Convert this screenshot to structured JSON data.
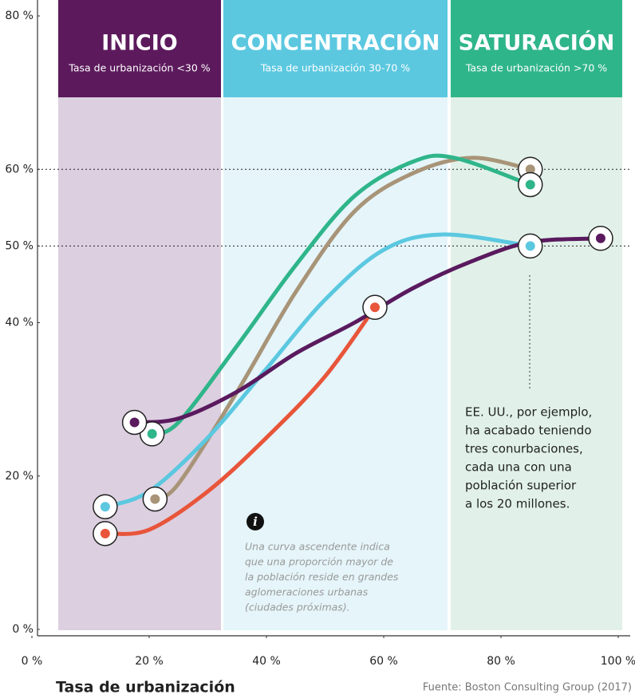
{
  "chart_data": {
    "type": "line",
    "bands": [
      {
        "title": "INICIO",
        "subtitle": "Tasa de urbanización <30 %"
      },
      {
        "title": "CONCENTRACIÓN",
        "subtitle": "Tasa de urbanización 30-70 %"
      },
      {
        "title": "SATURACIÓN",
        "subtitle": "Tasa de urbanización >70 %"
      }
    ],
    "xlabel": "Tasa de urbanización",
    "source": "Fuente: Boston Consulting Group (2017)",
    "annotation": [
      "EE. UU., por ejemplo,",
      "ha acabado teniendo",
      "tres conurbaciones,",
      "cada una con una",
      "población superior",
      "a los 20 millones."
    ],
    "note": [
      "Una curva ascendente indica",
      "que una proporción mayor de",
      "la población reside en grandes",
      "aglomeraciones urbanas",
      "(ciudades próximas)."
    ],
    "xlim": [
      0,
      100
    ],
    "xticks": [
      {
        "value": 0,
        "label": "0 %"
      },
      {
        "value": 20,
        "label": "20 %"
      },
      {
        "value": 40,
        "label": "40 %"
      },
      {
        "value": 60,
        "label": "60 %"
      },
      {
        "value": 80,
        "label": "80 %"
      },
      {
        "value": 100,
        "label": "100 %"
      }
    ],
    "ylim": [
      0,
      80
    ],
    "yticks": [
      {
        "value": 0,
        "label": "0 %"
      },
      {
        "value": 20,
        "label": "20 %"
      },
      {
        "value": 40,
        "label": "40 %"
      },
      {
        "value": 50,
        "label": "50 %"
      },
      {
        "value": 60,
        "label": "60 %"
      },
      {
        "value": 80,
        "label": "80 %"
      }
    ],
    "reference_lines": [
      60,
      50
    ],
    "series": [
      {
        "color": "#a89478",
        "x": [
          21,
          25,
          35,
          45,
          55,
          65,
          75,
          85
        ],
        "values": [
          17,
          19,
          31,
          44,
          54.5,
          59.5,
          61.5,
          60
        ]
      },
      {
        "color": "#2fb58a",
        "x": [
          20.5,
          25,
          35,
          45,
          55,
          65,
          72,
          85
        ],
        "values": [
          25.5,
          27,
          37,
          47.5,
          56.5,
          61,
          61.5,
          58
        ]
      },
      {
        "color": "#5bc8e0",
        "x": [
          12.5,
          20,
          30,
          40,
          50,
          60,
          70,
          85
        ],
        "values": [
          16,
          18,
          25,
          34,
          43,
          49.5,
          51.5,
          50
        ]
      },
      {
        "color": "#e8553a",
        "x": [
          12.5,
          20,
          30,
          40,
          50,
          58.5
        ],
        "values": [
          12.5,
          13,
          18,
          25,
          33,
          42
        ]
      },
      {
        "color": "#5a1a5e",
        "x": [
          17.5,
          25,
          35,
          45,
          55,
          65,
          75,
          85,
          97
        ],
        "values": [
          27,
          27.5,
          31,
          36,
          40,
          44.5,
          48,
          50.5,
          51
        ]
      }
    ]
  }
}
